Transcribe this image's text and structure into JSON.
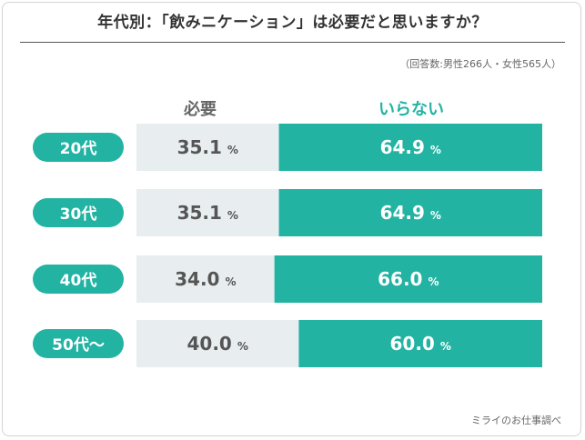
{
  "title": "年代別：「飲みニケーション」は必要だと思いますか？",
  "note": "（回答数:男性266人・女性565人）",
  "source": "ミライのお仕事調べ",
  "colors": {
    "need": "#e8edf0",
    "not_needed": "#22b3a3",
    "pill": "#22b3a3",
    "need_text": "#555555",
    "not_text": "#ffffff"
  },
  "chart_data": {
    "type": "bar",
    "orientation": "horizontal",
    "stacked": true,
    "normalized": true,
    "unit": "%",
    "categories": [
      "20代",
      "30代",
      "40代",
      "50代〜"
    ],
    "series": [
      {
        "name": "必要",
        "values": [
          35.1,
          35.1,
          34.0,
          40.0
        ]
      },
      {
        "name": "いらない",
        "values": [
          64.9,
          64.9,
          66.0,
          60.0
        ]
      }
    ],
    "xlim": [
      0,
      100
    ]
  }
}
